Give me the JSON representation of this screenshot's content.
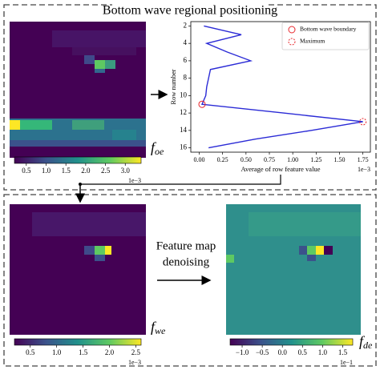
{
  "title": "Bottom wave regional positioning",
  "top_panel": {
    "map_label": {
      "symbol": "f",
      "subscript": "oe"
    },
    "colorbar": {
      "lim": [
        0.2,
        3.4
      ],
      "ticks": [
        0.5,
        {
          "value": 1,
          "label": "1.0"
        },
        1.5,
        {
          "value": 2,
          "label": "2.0"
        },
        2.5,
        {
          "value": 3,
          "label": "3.0"
        }
      ],
      "exponent": "1e−3"
    }
  },
  "chart_data": {
    "type": "line",
    "orientation": "horizontal",
    "xlabel": "Average of row feature value",
    "ylabel": "Row number",
    "x_exponent": "1e−3",
    "rows": [
      2,
      3,
      4,
      5,
      6,
      7,
      8,
      9,
      10,
      11,
      12,
      13,
      14,
      15,
      16
    ],
    "series": [
      {
        "color": "#2b2bd6",
        "values": [
          0.05,
          0.45,
          0.08,
          0.3,
          0.55,
          0.12,
          0.1,
          0.08,
          0.07,
          0.03,
          0.9,
          1.75,
          1.2,
          0.6,
          0.1
        ]
      }
    ],
    "markers": [
      {
        "name": "Bottom wave boundary",
        "row": 11,
        "value": 0.03,
        "style": "solid",
        "color": "#e8262b"
      },
      {
        "name": "Maximum",
        "row": 13,
        "value": 1.75,
        "style": "dashed",
        "color": "#e8262b"
      }
    ],
    "xlim": [
      -0.09,
      1.83
    ],
    "ylim": [
      1.5,
      16.5
    ],
    "y_inverted": true,
    "xticks": [
      {
        "value": 0,
        "label": "0.00"
      },
      0.25,
      {
        "value": 0.5,
        "label": "0.50"
      },
      0.75,
      {
        "value": 1,
        "label": "1.00"
      },
      1.25,
      {
        "value": 1.5,
        "label": "1.50"
      },
      1.75
    ],
    "yticks": [
      2,
      4,
      6,
      8,
      10,
      12,
      14,
      16
    ]
  },
  "bottom_panel": {
    "left_map_label": {
      "symbol": "f",
      "subscript": "we"
    },
    "left_colorbar": {
      "lim": [
        0.2,
        2.6
      ],
      "ticks": [
        0.5,
        {
          "value": 1,
          "label": "1.0"
        },
        1.5,
        {
          "value": 2,
          "label": "2.0"
        },
        2.5
      ],
      "exponent": "1e−3"
    },
    "process_label": [
      "Feature map",
      "denoising"
    ],
    "right_map_label": {
      "symbol": "f",
      "subscript": "de"
    },
    "right_colorbar": {
      "lim": [
        -1.3,
        1.75
      ],
      "ticks": [
        {
          "value": -1,
          "label": "−1.0"
        },
        {
          "value": -0.5,
          "label": "−0.5"
        },
        {
          "value": 0,
          "label": "0.0"
        },
        0.5,
        {
          "value": 1,
          "label": "1.0"
        },
        1.5
      ],
      "exponent": "1e−1"
    }
  }
}
